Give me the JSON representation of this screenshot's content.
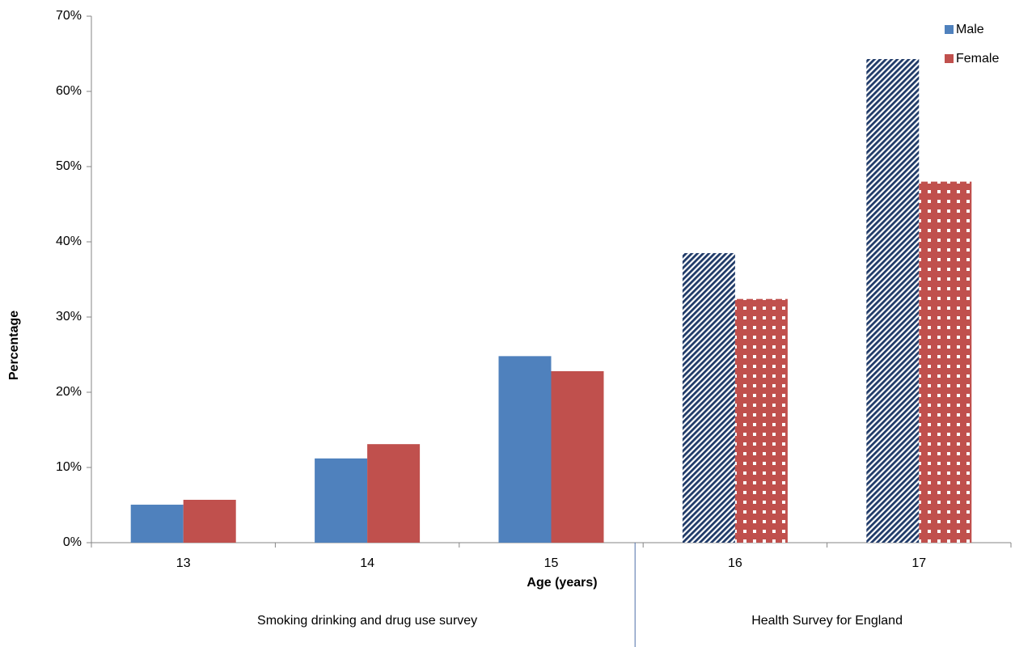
{
  "chart_data": {
    "type": "bar",
    "y_label": "Percentage",
    "x_label": "Age (years)",
    "categories": [
      "13",
      "14",
      "15",
      "16",
      "17"
    ],
    "series": [
      {
        "name": "Male",
        "color": "#4f81bd",
        "pattern": "diagonal-stripes",
        "pattern_color": "#1f3a68",
        "values": [
          5.05,
          11.2,
          24.8,
          38.5,
          64.3
        ]
      },
      {
        "name": "Female",
        "color": "#c0504d",
        "pattern": "dots",
        "pattern_color": "#ffffff",
        "values": [
          5.7,
          13.1,
          22.8,
          32.4,
          48.0
        ]
      }
    ],
    "groups": [
      {
        "label": "Smoking drinking and drug use survey",
        "categories": [
          0,
          1,
          2
        ],
        "patterned": false
      },
      {
        "label": "Health Survey for England",
        "categories": [
          3,
          4
        ],
        "patterned": true
      }
    ],
    "ylim": [
      0,
      70
    ],
    "yticks": [
      {
        "value": 0,
        "label": "0%"
      },
      {
        "value": 10,
        "label": "10%"
      },
      {
        "value": 20,
        "label": "20%"
      },
      {
        "value": 30,
        "label": "30%"
      },
      {
        "value": 40,
        "label": "40%"
      },
      {
        "value": 50,
        "label": "50%"
      },
      {
        "value": 60,
        "label": "60%"
      },
      {
        "value": 70,
        "label": "70%"
      }
    ],
    "grid": false,
    "legend": "top-right"
  }
}
